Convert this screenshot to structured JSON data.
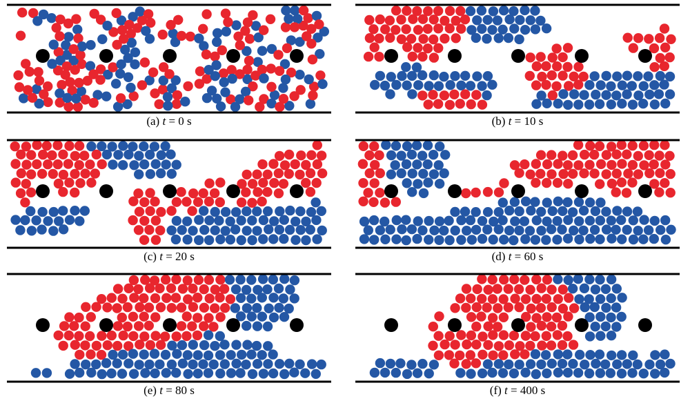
{
  "colors": {
    "red": "#e8262e",
    "blue": "#2457a5",
    "obstacle": "#000000",
    "wall": "#000000"
  },
  "panels": [
    {
      "label": "(a)",
      "t_var": "t",
      "t_value": "= 0 s",
      "pattern": "mixed"
    },
    {
      "label": "(b)",
      "t_var": "t",
      "t_value": "= 10 s",
      "pattern": "t10"
    },
    {
      "label": "(c)",
      "t_var": "t",
      "t_value": "= 20 s",
      "pattern": "t20"
    },
    {
      "label": "(d)",
      "t_var": "t",
      "t_value": "= 60 s",
      "pattern": "t60"
    },
    {
      "label": "(e)",
      "t_var": "t",
      "t_value": "= 80 s",
      "pattern": "t80"
    },
    {
      "label": "(f)",
      "t_var": "t",
      "t_value": "= 400 s",
      "pattern": "t400"
    }
  ]
}
